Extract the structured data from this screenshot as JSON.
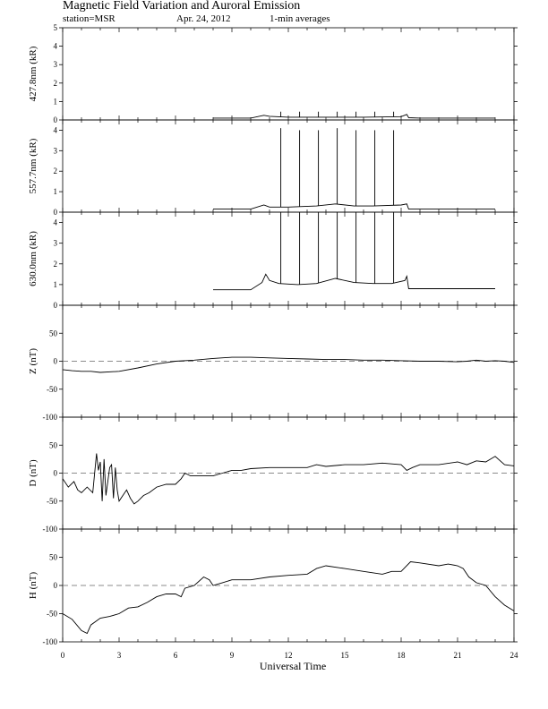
{
  "header": {
    "title": "Magnetic Field Variation and Auroral Emission",
    "station": "station=MSR",
    "date": "Apr. 24, 2012",
    "averaging": "1-min averages"
  },
  "chart_data": [
    {
      "type": "line",
      "name": "427.8nm",
      "ylabel": "427.8nm (kR)",
      "ylim": [
        0,
        5
      ],
      "yticks": [
        0,
        1,
        2,
        3,
        4,
        5
      ],
      "xlim": [
        0,
        24
      ],
      "grid": false,
      "x": [
        8.0,
        10.0,
        10.7,
        11.0,
        12.0,
        14.0,
        16.0,
        18.0,
        18.3,
        18.4,
        19.0,
        21.0,
        23.0
      ],
      "values": [
        0.1,
        0.1,
        0.25,
        0.2,
        0.15,
        0.15,
        0.15,
        0.18,
        0.3,
        0.12,
        0.1,
        0.1,
        0.1
      ],
      "spikes_x": [
        11.6,
        12.6,
        13.6,
        14.6,
        15.6,
        16.6,
        17.6
      ],
      "spikes_y": [
        0.45,
        0.45,
        0.45,
        0.45,
        0.45,
        0.45,
        0.45
      ]
    },
    {
      "type": "line",
      "name": "557.7nm",
      "ylabel": "557.7nm (kR)",
      "ylim": [
        0,
        4.5
      ],
      "yticks": [
        0,
        1,
        2,
        3,
        4
      ],
      "xlim": [
        0,
        24
      ],
      "grid": false,
      "x": [
        8.0,
        10.0,
        10.7,
        11.0,
        12.0,
        13.5,
        14.5,
        15.5,
        16.5,
        18.0,
        18.3,
        18.4,
        19.0,
        21.0,
        23.0
      ],
      "values": [
        0.15,
        0.15,
        0.35,
        0.25,
        0.25,
        0.3,
        0.4,
        0.3,
        0.3,
        0.35,
        0.4,
        0.15,
        0.15,
        0.15,
        0.15
      ],
      "spikes_x": [
        11.6,
        12.6,
        13.6,
        14.6,
        15.6,
        16.6,
        17.6
      ],
      "spikes_y": [
        4.1,
        4.0,
        4.0,
        4.1,
        4.0,
        4.0,
        4.0
      ]
    },
    {
      "type": "line",
      "name": "630.0nm",
      "ylabel": "630.0nm (kR)",
      "ylim": [
        0,
        4.5
      ],
      "yticks": [
        0,
        1,
        2,
        3,
        4
      ],
      "xlim": [
        0,
        24
      ],
      "grid": false,
      "x": [
        8.0,
        9.0,
        10.0,
        10.6,
        10.8,
        11.0,
        11.5,
        12.5,
        13.5,
        14.5,
        15.5,
        16.5,
        17.5,
        18.2,
        18.3,
        18.4,
        19.0,
        21.0,
        23.0
      ],
      "values": [
        0.75,
        0.75,
        0.75,
        1.1,
        1.5,
        1.2,
        1.05,
        1.0,
        1.05,
        1.3,
        1.1,
        1.05,
        1.05,
        1.2,
        1.4,
        0.8,
        0.8,
        0.8,
        0.8
      ],
      "spikes_x": [
        11.6,
        12.6,
        13.6,
        14.6,
        15.6,
        16.6,
        17.6
      ],
      "spikes_y": [
        4.5,
        4.5,
        4.5,
        4.5,
        4.5,
        4.5,
        4.5
      ]
    },
    {
      "type": "line",
      "name": "Z",
      "ylabel": "Z (nT)",
      "ylim": [
        -100,
        100
      ],
      "yticks": [
        -100,
        -50,
        0,
        50
      ],
      "zero_line": true,
      "xlim": [
        0,
        24
      ],
      "grid": false,
      "x": [
        0,
        0.5,
        1,
        1.5,
        2,
        3,
        4,
        5,
        6,
        7,
        8,
        9,
        10,
        11,
        12,
        13,
        14,
        15,
        16,
        17,
        18,
        19,
        20,
        21,
        21.5,
        22,
        22.5,
        23,
        23.5,
        24
      ],
      "values": [
        -15,
        -17,
        -18,
        -18,
        -20,
        -18,
        -12,
        -5,
        0,
        2,
        5,
        7,
        7,
        6,
        5,
        4,
        3,
        3,
        2,
        2,
        1,
        0,
        0,
        -1,
        0,
        2,
        0,
        1,
        0,
        -2
      ]
    },
    {
      "type": "line",
      "name": "D",
      "ylabel": "D (nT)",
      "ylim": [
        -100,
        100
      ],
      "yticks": [
        -100,
        -50,
        0,
        50
      ],
      "zero_line": true,
      "xlim": [
        0,
        24
      ],
      "grid": false,
      "x": [
        0,
        0.3,
        0.6,
        0.8,
        1.0,
        1.3,
        1.6,
        1.8,
        1.9,
        2.0,
        2.1,
        2.2,
        2.3,
        2.5,
        2.6,
        2.7,
        2.8,
        2.9,
        3.0,
        3.2,
        3.4,
        3.6,
        3.8,
        4.0,
        4.3,
        4.6,
        5.0,
        5.5,
        6.0,
        6.3,
        6.5,
        6.8,
        7.2,
        7.6,
        8.0,
        8.5,
        9.0,
        9.5,
        10.0,
        11.0,
        12.0,
        13.0,
        13.5,
        14.0,
        15.0,
        16.0,
        17.0,
        18.0,
        18.3,
        18.6,
        19.0,
        20.0,
        21.0,
        21.5,
        22.0,
        22.5,
        23.0,
        23.5,
        24.0
      ],
      "values": [
        -10,
        -25,
        -15,
        -30,
        -35,
        -25,
        -35,
        35,
        5,
        20,
        -50,
        25,
        -40,
        10,
        15,
        -45,
        10,
        -30,
        -50,
        -40,
        -30,
        -45,
        -55,
        -50,
        -40,
        -35,
        -25,
        -20,
        -20,
        -10,
        0,
        -5,
        -5,
        -5,
        -5,
        0,
        5,
        5,
        8,
        10,
        10,
        10,
        15,
        12,
        15,
        15,
        18,
        15,
        5,
        10,
        15,
        15,
        20,
        15,
        22,
        20,
        30,
        15,
        13
      ]
    },
    {
      "type": "line",
      "name": "H",
      "ylabel": "H (nT)",
      "ylim": [
        -100,
        100
      ],
      "yticks": [
        -100,
        -50,
        0,
        50
      ],
      "zero_line": true,
      "xlim": [
        0,
        24
      ],
      "grid": false,
      "x": [
        0,
        0.5,
        1.0,
        1.3,
        1.5,
        2.0,
        2.5,
        3.0,
        3.5,
        4.0,
        4.5,
        5.0,
        5.5,
        6.0,
        6.3,
        6.5,
        7.0,
        7.5,
        7.8,
        8.0,
        8.5,
        9.0,
        10.0,
        11.0,
        12.0,
        13.0,
        13.5,
        14.0,
        15.0,
        16.0,
        17.0,
        17.5,
        18.0,
        18.5,
        19.0,
        20.0,
        20.5,
        21.0,
        21.3,
        21.6,
        22.0,
        22.5,
        23.0,
        23.5,
        24.0
      ],
      "values": [
        -50,
        -60,
        -80,
        -85,
        -70,
        -58,
        -55,
        -50,
        -40,
        -38,
        -30,
        -20,
        -15,
        -15,
        -20,
        -5,
        0,
        15,
        10,
        0,
        5,
        10,
        10,
        15,
        18,
        20,
        30,
        35,
        30,
        25,
        20,
        25,
        25,
        42,
        40,
        35,
        38,
        35,
        30,
        15,
        5,
        0,
        -20,
        -35,
        -45
      ]
    }
  ],
  "x_axis": {
    "label": "Universal Time",
    "ticks": [
      "0",
      "3",
      "6",
      "9",
      "12",
      "15",
      "18",
      "21",
      "24"
    ]
  }
}
